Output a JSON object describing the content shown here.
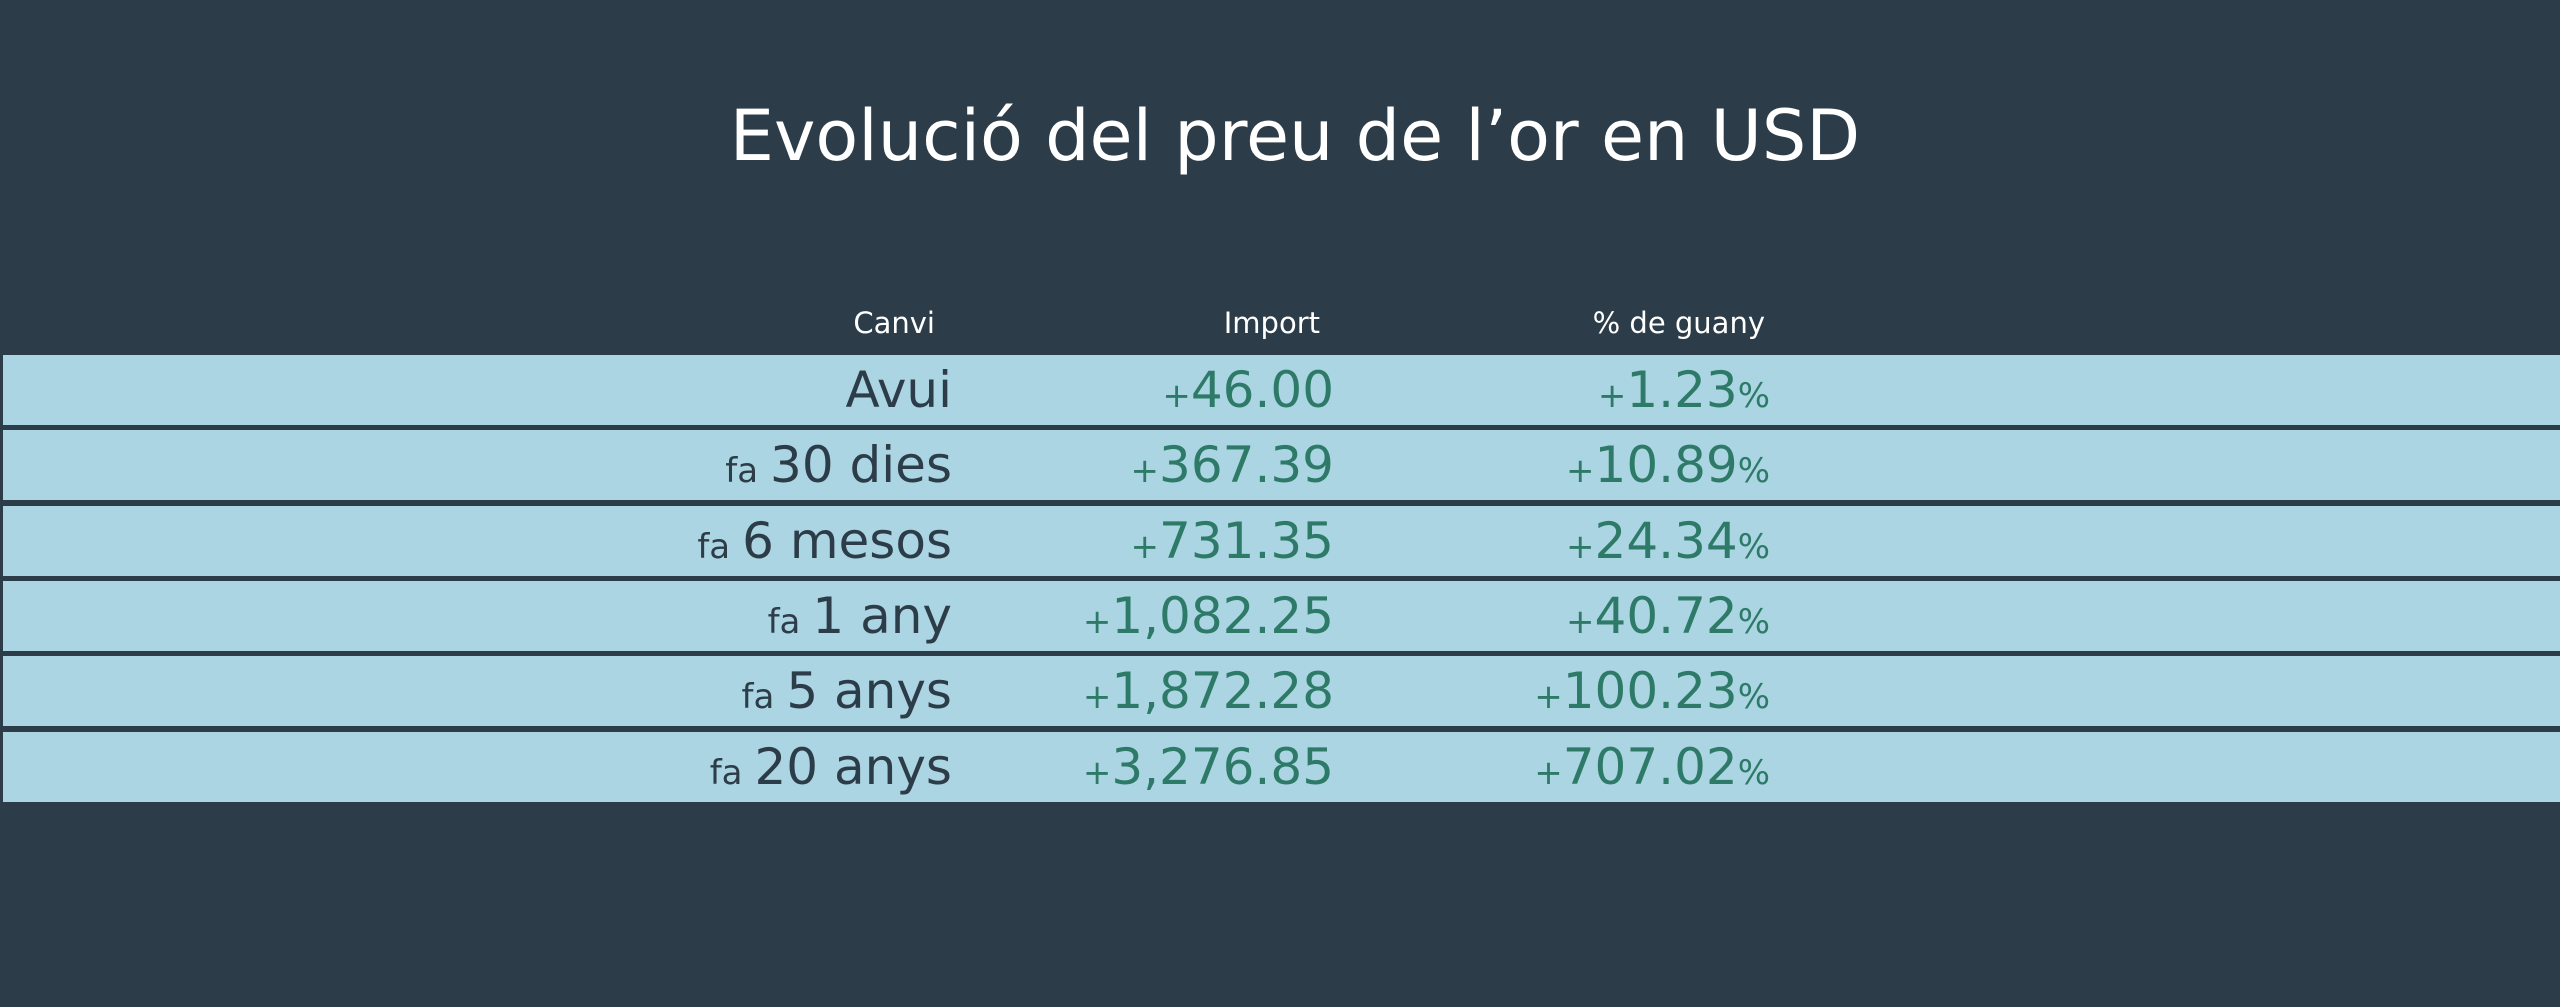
{
  "header": {
    "title": "Evolució del preu de l’or en USD"
  },
  "table": {
    "columns": [
      "Canvi",
      "Import",
      "% de guany"
    ],
    "rows": [
      {
        "change": {
          "text": "Avui"
        },
        "amount": {
          "sign": "+",
          "text": "46.00"
        },
        "gain": {
          "sign": "+",
          "text": "1.23",
          "unit": "%"
        }
      },
      {
        "change": {
          "prefix": "fa",
          "text": "30 dies"
        },
        "amount": {
          "sign": "+",
          "text": "367.39"
        },
        "gain": {
          "sign": "+",
          "text": "10.89",
          "unit": "%"
        }
      },
      {
        "change": {
          "prefix": "fa",
          "text": "6 mesos"
        },
        "amount": {
          "sign": "+",
          "text": "731.35"
        },
        "gain": {
          "sign": "+",
          "text": "24.34",
          "unit": "%"
        }
      },
      {
        "change": {
          "prefix": "fa",
          "text": "1 any"
        },
        "amount": {
          "sign": "+",
          "text": "1,082.25"
        },
        "gain": {
          "sign": "+",
          "text": "40.72",
          "unit": "%"
        }
      },
      {
        "change": {
          "prefix": "fa",
          "text": "5 anys"
        },
        "amount": {
          "sign": "+",
          "text": "1,872.28"
        },
        "gain": {
          "sign": "+",
          "text": "100.23",
          "unit": "%"
        }
      },
      {
        "change": {
          "prefix": "fa",
          "text": "20 anys"
        },
        "amount": {
          "sign": "+",
          "text": "3,276.85"
        },
        "gain": {
          "sign": "+",
          "text": "707.02",
          "unit": "%"
        }
      }
    ]
  }
}
